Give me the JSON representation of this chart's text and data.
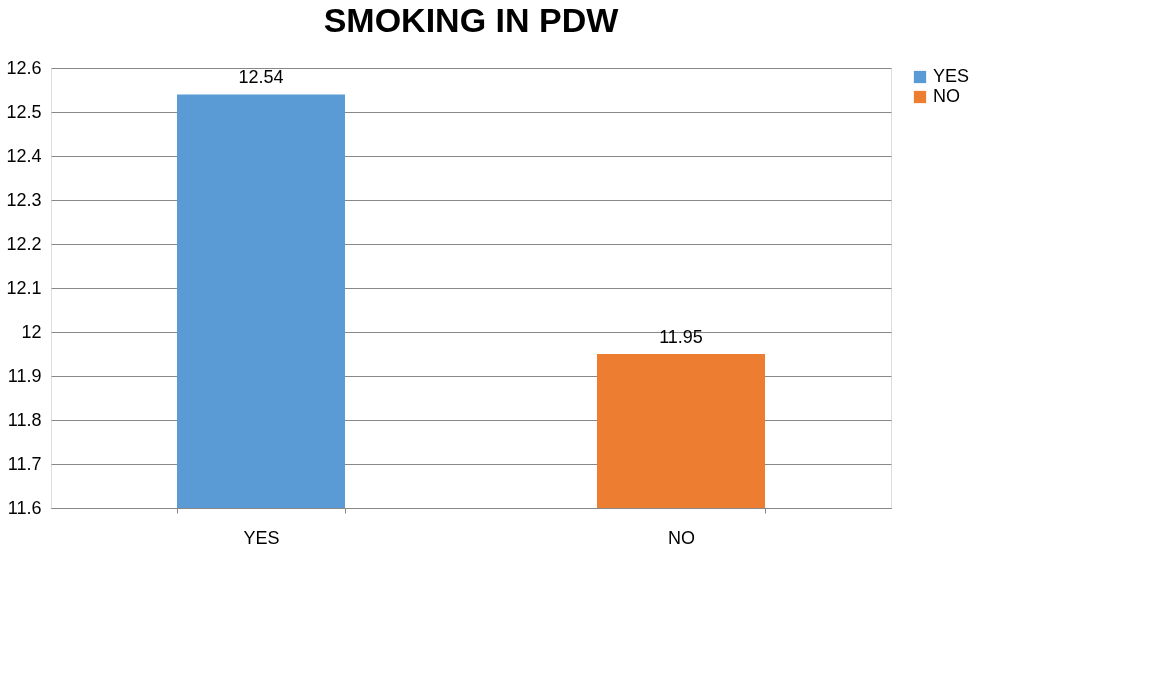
{
  "chart_data": {
    "type": "bar",
    "title": "SMOKING IN PDW",
    "categories": [
      "YES",
      "NO"
    ],
    "series": [
      {
        "name": "YES",
        "color": "#5b9bd5",
        "values": [
          12.54,
          null
        ]
      },
      {
        "name": "NO",
        "color": "#ed7d31",
        "values": [
          null,
          11.95
        ]
      }
    ],
    "ylim": [
      11.6,
      12.6
    ],
    "yticks": [
      11.6,
      11.7,
      11.8,
      11.9,
      12,
      12.1,
      12.2,
      12.3,
      12.4,
      12.5,
      12.6
    ],
    "grid": "y",
    "legend": "right",
    "data_labels": true
  }
}
